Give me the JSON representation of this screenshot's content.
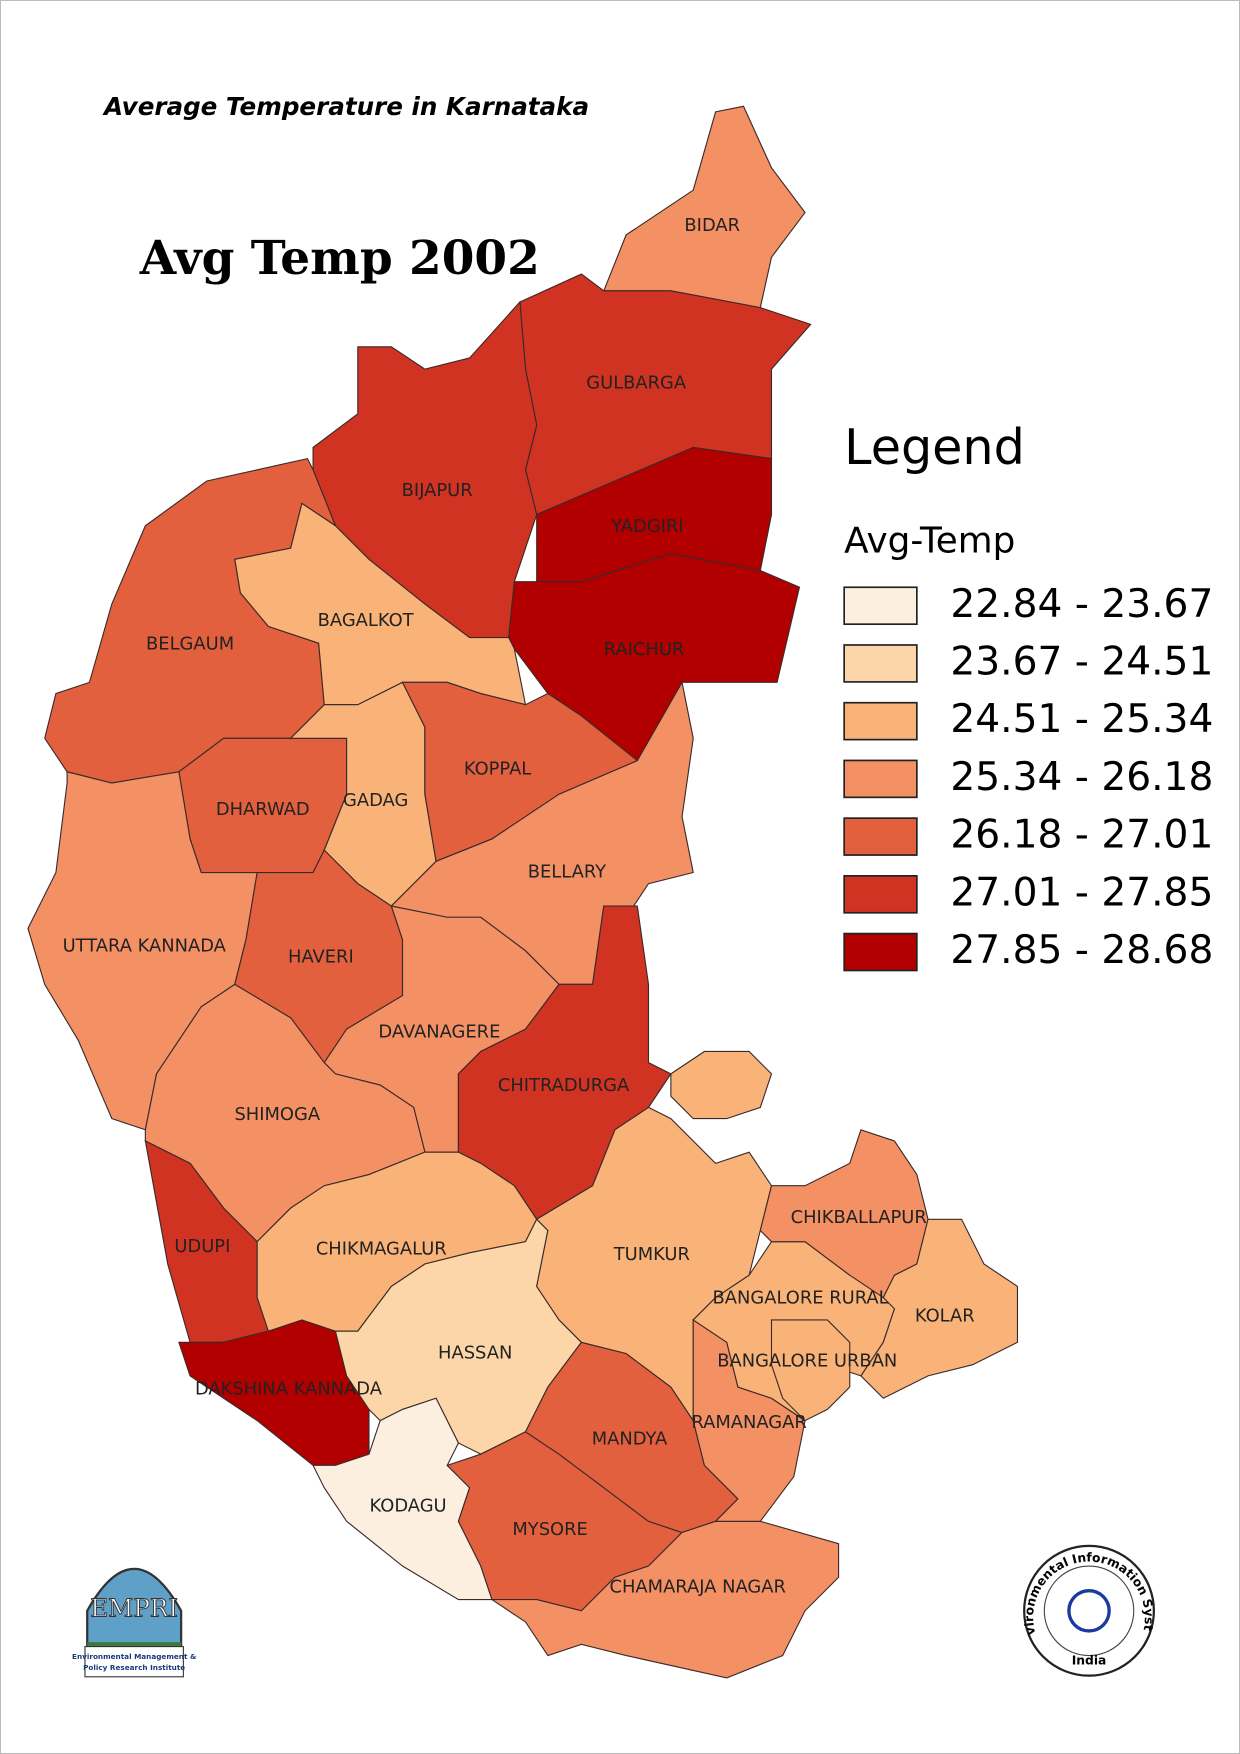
{
  "title": "Average Temperature  in Karnataka",
  "map_title": "Avg Temp 2002",
  "legend": {
    "title": "Legend",
    "field": "Avg-Temp",
    "classes": [
      {
        "label": "22.84 - 23.67",
        "color": "#fdefe0"
      },
      {
        "label": "23.67 - 24.51",
        "color": "#fcd6a8"
      },
      {
        "label": "24.51 - 25.34",
        "color": "#f9b378"
      },
      {
        "label": "25.34 - 26.18",
        "color": "#f39064"
      },
      {
        "label": "26.18 - 27.01",
        "color": "#e2603e"
      },
      {
        "label": "27.01 - 27.85",
        "color": "#d13323"
      },
      {
        "label": "27.85 - 28.68",
        "color": "#b20000"
      }
    ]
  },
  "districts": [
    {
      "name": "BIDAR",
      "color": "#f39064"
    },
    {
      "name": "GULBARGA",
      "color": "#d13323"
    },
    {
      "name": "BIJAPUR",
      "color": "#d13323"
    },
    {
      "name": "YADGIRI",
      "color": "#b20000"
    },
    {
      "name": "RAICHUR",
      "color": "#b20000"
    },
    {
      "name": "BELGAUM",
      "color": "#e2603e"
    },
    {
      "name": "BAGALKOT",
      "color": "#f9b378"
    },
    {
      "name": "DHARWAD",
      "color": "#e2603e"
    },
    {
      "name": "GADAG",
      "color": "#f9b378"
    },
    {
      "name": "KOPPAL",
      "color": "#e2603e"
    },
    {
      "name": "BELLARY",
      "color": "#f39064"
    },
    {
      "name": "UTTARA KANNADA",
      "color": "#f39064"
    },
    {
      "name": "HAVERI",
      "color": "#e2603e"
    },
    {
      "name": "DAVANAGERE",
      "color": "#f39064"
    },
    {
      "name": "CHITRADURGA",
      "color": "#d13323"
    },
    {
      "name": "SHIMOGA",
      "color": "#f39064"
    },
    {
      "name": "UDUPI",
      "color": "#d13323"
    },
    {
      "name": "DAKSHINA KANNADA",
      "color": "#b20000"
    },
    {
      "name": "CHIKMAGALUR",
      "color": "#f9b378"
    },
    {
      "name": "HASSAN",
      "color": "#fcd6a8"
    },
    {
      "name": "KODAGU",
      "color": "#fdefe0"
    },
    {
      "name": "MYSORE",
      "color": "#e2603e"
    },
    {
      "name": "MANDYA",
      "color": "#e2603e"
    },
    {
      "name": "CHAMARAJA NAGAR",
      "color": "#f39064"
    },
    {
      "name": "TUMKUR",
      "color": "#f9b378"
    },
    {
      "name": "RAMANAGAR",
      "color": "#f39064"
    },
    {
      "name": "BANGALORE RURAL",
      "color": "#f9b378"
    },
    {
      "name": "BANGALORE URBAN",
      "color": "#f9b378"
    },
    {
      "name": "CHIKBALLAPUR",
      "color": "#f39064"
    },
    {
      "name": "KOLAR",
      "color": "#f9b378"
    }
  ],
  "logos": {
    "empri": {
      "name": "EMPRI",
      "caption": [
        "Environmental Management &",
        "Policy Research Institute"
      ]
    },
    "eis": {
      "name": "Environmental Information System",
      "country": "India"
    }
  }
}
